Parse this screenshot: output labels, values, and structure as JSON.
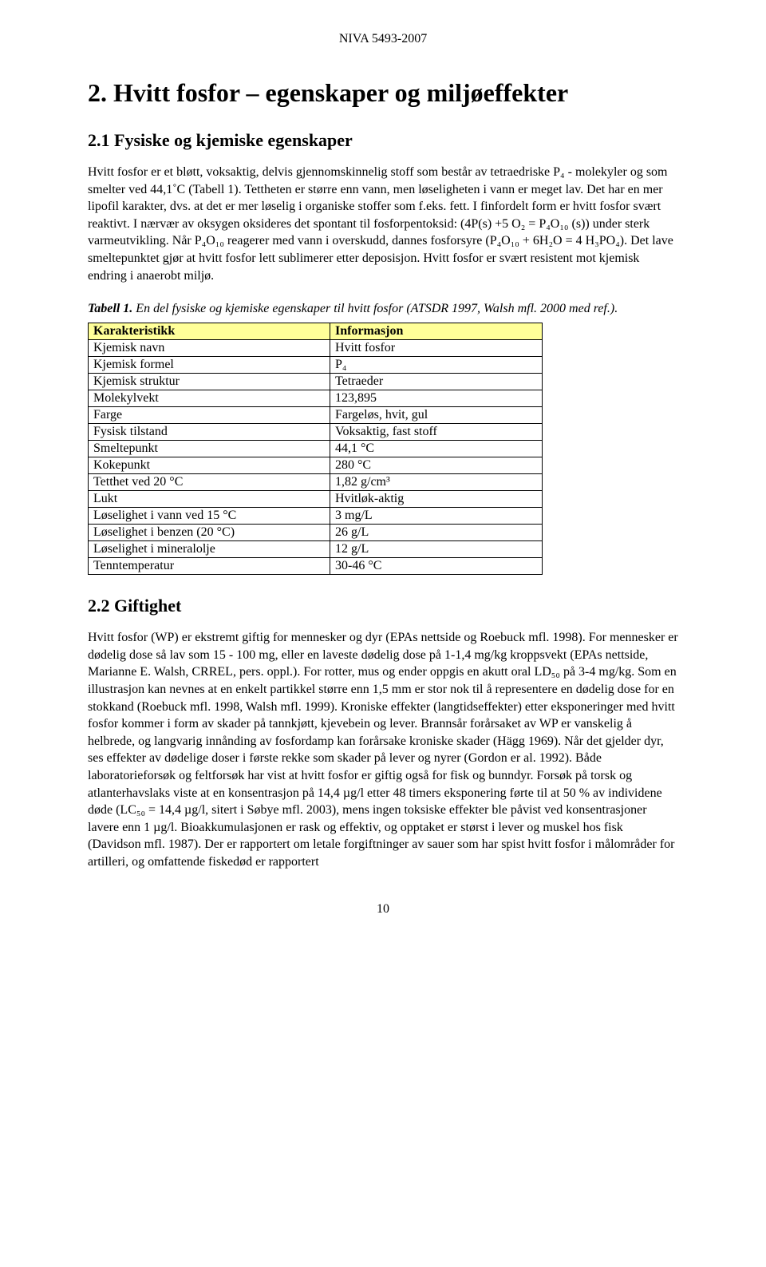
{
  "header": "NIVA 5493-2007",
  "section_title": "2. Hvitt fosfor – egenskaper og miljøeffekter",
  "subsection1_title": "2.1 Fysiske og kjemiske egenskaper",
  "paragraph1": "Hvitt fosfor er et bløtt, voksaktig, delvis gjennomskinnelig stoff som består av tetraedriske P₄ - molekyler og som smelter ved 44,1˚C (Tabell 1). Tettheten er større enn vann, men løseligheten i vann er meget lav. Det har en mer lipofil karakter, dvs. at det er mer løselig i organiske stoffer som f.eks. fett. I finfordelt form er hvitt fosfor svært reaktivt. I nærvær av oksygen oksideres det spontant til fosforpentoksid: (4P(s) +5 O₂ = P₄O₁₀ (s)) under sterk varmeutvikling. Når P₄O₁₀ reagerer med vann i overskudd, dannes fosforsyre (P₄O₁₀ + 6H₂O = 4 H₃PO₄). Det lave smeltepunktet gjør at hvitt fosfor lett sublimerer etter deposisjon. Hvitt fosfor er svært resistent mot kjemisk endring i anaerobt miljø.",
  "table1_caption_bold": "Tabell 1.",
  "table1_caption_rest": "  En del fysiske og kjemiske egenskaper til hvitt fosfor (ATSDR 1997, Walsh mfl. 2000 med ref.).",
  "table1": {
    "header_col1": "Karakteristikk",
    "header_col2": "Informasjon",
    "header_bg": "#ffff99",
    "rows": [
      [
        "Kjemisk navn",
        "Hvitt fosfor"
      ],
      [
        "Kjemisk formel",
        "P₄"
      ],
      [
        "Kjemisk struktur",
        "Tetraeder"
      ],
      [
        "Molekylvekt",
        "123,895"
      ],
      [
        "Farge",
        "Fargeløs, hvit, gul"
      ],
      [
        "Fysisk tilstand",
        "Voksaktig, fast stoff"
      ],
      [
        "Smeltepunkt",
        "44,1 °C"
      ],
      [
        "Kokepunkt",
        "280 °C"
      ],
      [
        "Tetthet ved 20 °C",
        "1,82 g/cm³"
      ],
      [
        "Lukt",
        "Hvitløk-aktig"
      ],
      [
        "Løselighet i vann ved 15 °C",
        "3 mg/L"
      ],
      [
        "Løselighet i benzen (20 °C)",
        "26 g/L"
      ],
      [
        "Løselighet i mineralolje",
        "12 g/L"
      ],
      [
        "Tenntemperatur",
        "30-46 °C"
      ]
    ]
  },
  "subsection2_title": "2.2 Giftighet",
  "paragraph2": "Hvitt fosfor (WP) er ekstremt giftig for mennesker og dyr (EPAs nettside og Roebuck mfl. 1998). For mennesker er dødelig dose så lav som 15 - 100 mg, eller en laveste dødelig dose på 1-1,4 mg/kg kroppsvekt (EPAs nettside, Marianne E. Walsh, CRREL, pers. oppl.). For rotter, mus og ender oppgis en akutt oral LD₅₀ på 3-4 mg/kg. Som en illustrasjon kan nevnes at en enkelt partikkel større enn 1,5 mm er stor nok til å representere en dødelig dose for en stokkand (Roebuck mfl. 1998, Walsh mfl. 1999). Kroniske effekter (langtidseffekter) etter eksponeringer med hvitt fosfor kommer i form av skader på tannkjøtt, kjevebein og lever. Brannsår forårsaket av WP er vanskelig å helbrede, og langvarig innånding av fosfordamp kan forårsake kroniske skader (Hägg 1969). Når det gjelder dyr, ses effekter av dødelige doser i første rekke som skader på lever og nyrer (Gordon er al. 1992). Både laboratorieforsøk og feltforsøk har vist at hvitt fosfor er giftig også for fisk og bunndyr. Forsøk på torsk og atlanterhavslaks viste at en konsentrasjon på 14,4 µg/l etter 48 timers eksponering førte til at 50 % av individene døde (LC₅₀ = 14,4 µg/l, sitert i Søbye mfl. 2003), mens ingen toksiske effekter ble påvist ved konsentrasjoner lavere enn 1 µg/l. Bioakkumulasjonen er rask og effektiv, og opptaket er størst i lever og muskel hos fisk (Davidson mfl. 1987). Der er rapportert om letale forgiftninger av sauer som har spist hvitt fosfor i målområder for artilleri, og omfattende fiskedød er rapportert",
  "page_number": "10"
}
